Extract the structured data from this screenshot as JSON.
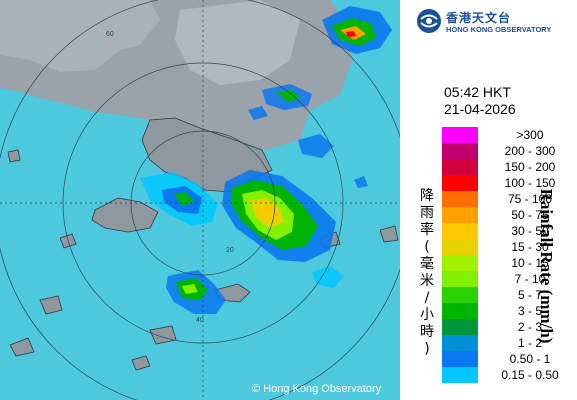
{
  "map": {
    "copyright": "© Hong Kong Observatory",
    "range_ring_labels": [
      "20",
      "40",
      "60"
    ],
    "colors": {
      "sea": "#4ec8dc",
      "land": "#9aa2aa",
      "ring": "#24485a"
    }
  },
  "logo": {
    "name_zh": "香港天文台",
    "name_en": "HONG KONG OBSERVATORY",
    "icon": "hko-emblem-icon"
  },
  "timestamp": {
    "time": "05:42 HKT",
    "date": "21-04-2026"
  },
  "legend": {
    "title_en": "Rainfall Rate (mm/h)",
    "title_zh": [
      "降",
      "雨",
      "率",
      "(",
      "毫",
      "米",
      "/",
      "小",
      "時",
      ")"
    ],
    "scale": [
      {
        "label": ">300",
        "color": "#ff00ff"
      },
      {
        "label": "200 - 300",
        "color": "#c0006e"
      },
      {
        "label": "150 - 200",
        "color": "#d2003c"
      },
      {
        "label": "100 - 150",
        "color": "#ff0000"
      },
      {
        "label": "75 - 100",
        "color": "#ff6e00"
      },
      {
        "label": "50 - 75",
        "color": "#ffa000"
      },
      {
        "label": "30 - 50",
        "color": "#ffc800"
      },
      {
        "label": "15 - 30",
        "color": "#e6d200"
      },
      {
        "label": "10 - 15",
        "color": "#a0f000"
      },
      {
        "label": "7 - 10",
        "color": "#82f000"
      },
      {
        "label": "5 - 7",
        "color": "#2ad200"
      },
      {
        "label": "3 - 5",
        "color": "#00b400"
      },
      {
        "label": "2 - 3",
        "color": "#00963c"
      },
      {
        "label": "1 - 2",
        "color": "#0090d8"
      },
      {
        "label": "0.50 - 1",
        "color": "#0a78f0"
      },
      {
        "label": "0.15 - 0.50",
        "color": "#00c8ff"
      }
    ]
  }
}
